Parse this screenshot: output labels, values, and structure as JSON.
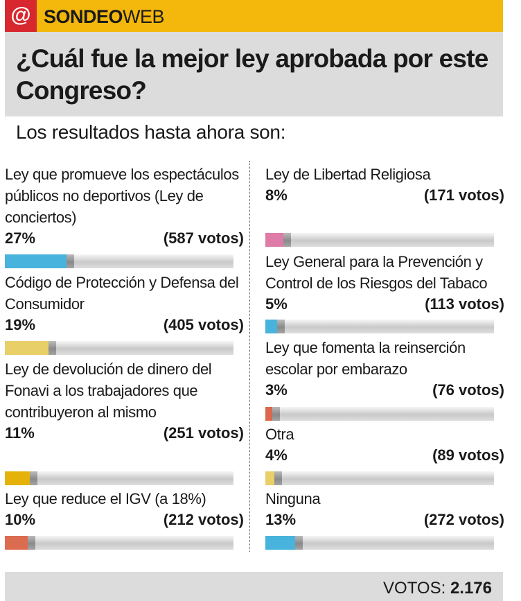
{
  "header": {
    "badge": "@",
    "brand_bold": "SONDEO",
    "brand_light": "WEB"
  },
  "question": "¿Cuál fue la mejor ley aprobada por este Congreso?",
  "subtitle": "Los resultados hasta ahora son:",
  "chart_data": {
    "type": "bar",
    "title": "¿Cuál fue la mejor ley aprobada por este Congreso?",
    "subtitle": "Los resultados hasta ahora son:",
    "ylim": [
      0,
      100
    ],
    "items": [
      {
        "label": "Ley que promueve los espectáculos públicos no deportivos (Ley de conciertos)",
        "percent": 27,
        "pct_text": "27%",
        "votes_text": "(587 votos)",
        "color": "#48b3dc"
      },
      {
        "label": "Código de Protección y Defensa del Consumidor",
        "percent": 19,
        "pct_text": "19%",
        "votes_text": "(405 votos)",
        "color": "#e9cf67"
      },
      {
        "label": "Ley de devolución de dinero del Fonavi a los trabajadores que contribuyeron al mismo",
        "percent": 11,
        "pct_text": "11%",
        "votes_text": "(251 votos)",
        "color": "#e5b20a"
      },
      {
        "label": "Ley que reduce el IGV (a 18%)",
        "percent": 10,
        "pct_text": "10%",
        "votes_text": "(212 votos)",
        "color": "#dc6c4f"
      },
      {
        "label": "Ley de Libertad Religiosa",
        "percent": 8,
        "pct_text": "8%",
        "votes_text": "(171 votos)",
        "color": "#de7ba6"
      },
      {
        "label": "Ley General para la Prevención y Control de los Riesgos del Tabaco",
        "percent": 5,
        "pct_text": "5%",
        "votes_text": "(113 votos)",
        "color": "#48b3dc"
      },
      {
        "label": "Ley que fomenta la reinserción escolar por embarazo",
        "percent": 3,
        "pct_text": "3%",
        "votes_text": "(76 votos)",
        "color": "#d9684d"
      },
      {
        "label": "Otra",
        "percent": 4,
        "pct_text": "4%",
        "votes_text": "(89 votos)",
        "color": "#e9cf67"
      },
      {
        "label": "Ninguna",
        "percent": 13,
        "pct_text": "13%",
        "votes_text": "(272 votos)",
        "color": "#48b3dc"
      }
    ]
  },
  "footer": {
    "total_label": "VOTOS:",
    "total_value": "2.176"
  }
}
